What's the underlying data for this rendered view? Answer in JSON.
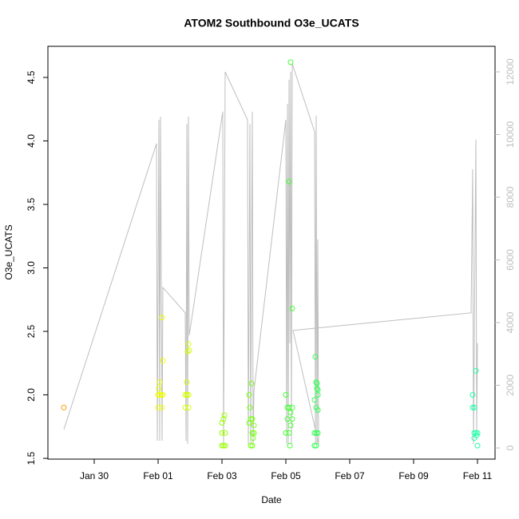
{
  "chart_data": {
    "type": "scatter",
    "title": "ATOM2 Southbound O3e_UCATS",
    "x_label": "Date",
    "y_label": "O3e_UCATS",
    "xlim": [
      -1.45,
      12.55
    ],
    "ylim": [
      1.494,
      4.745
    ],
    "y2lim": [
      -357,
      12815
    ],
    "xticks": [
      {
        "value": 0,
        "label": "Jan 30"
      },
      {
        "value": 2,
        "label": "Feb 01"
      },
      {
        "value": 4,
        "label": "Feb 03"
      },
      {
        "value": 6,
        "label": "Feb 05"
      },
      {
        "value": 8,
        "label": "Feb 07"
      },
      {
        "value": 10,
        "label": "Feb 09"
      },
      {
        "value": 12,
        "label": "Feb 11"
      }
    ],
    "yticks": [
      1.5,
      {
        "value": 2,
        "label": "2.0"
      },
      2.5,
      {
        "value": 3,
        "label": "3.0"
      },
      3.5,
      {
        "value": 4,
        "label": "4.0"
      },
      4.5
    ],
    "y2ticks": [
      0,
      2000,
      4000,
      6000,
      8000,
      10000,
      12000
    ],
    "y2_color": "#bebebe",
    "series": [
      {
        "type": "line",
        "axis": "y2",
        "color": "#bebebe",
        "x": [
          -0.95,
          1.95,
          1.975,
          2.025,
          2.05,
          2.075,
          2.125,
          2.15,
          2.85,
          2.875,
          2.9,
          2.925,
          2.95,
          2.975,
          4.025,
          4.05,
          4.1,
          4.8,
          4.825,
          4.875,
          4.9,
          4.95,
          4.975,
          5.0,
          6.0,
          6.025,
          6.05,
          6.075,
          6.1,
          6.125,
          6.15,
          6.175,
          6.2,
          6.9,
          6.925,
          6.95,
          6.975,
          7.0,
          7.025,
          6.225,
          11.8,
          11.85,
          11.875,
          11.95,
          11.975,
          12.0
        ],
        "values": [
          590,
          9710,
          230,
          10470,
          230,
          10570,
          230,
          5120,
          4310,
          230,
          10340,
          130,
          10570,
          3590,
          10730,
          130,
          12000,
          10470,
          130,
          10340,
          130,
          10730,
          130,
          1810,
          10470,
          130,
          10980,
          130,
          11750,
          3340,
          12000,
          130,
          12260,
          10090,
          130,
          10600,
          130,
          6650,
          130,
          3750,
          4310,
          8890,
          130,
          9840,
          540,
          3340
        ]
      },
      {
        "color": "#ff9900",
        "x": [
          -0.95
        ],
        "values": [
          1.9
        ]
      },
      {
        "color": "#eeff00",
        "x": [
          2.0,
          2.05,
          2.1,
          2.15,
          2.0,
          2.125,
          2.05,
          2.125,
          2.15,
          2.025
        ],
        "values": [
          2.0,
          2.0,
          2.0,
          2.0,
          1.9,
          1.9,
          2.1,
          2.61,
          2.27,
          2.05
        ]
      },
      {
        "color": "#d4ff00",
        "x": [
          2.85,
          2.9,
          2.95,
          2.85,
          2.95,
          2.9,
          2.95,
          2.975,
          2.925
        ],
        "values": [
          2.0,
          2.0,
          2.0,
          1.9,
          1.9,
          2.1,
          2.4,
          2.35,
          2.34
        ]
      },
      {
        "color": "#99ff00",
        "x": [
          4.0,
          4.05,
          4.1,
          4.0,
          4.1,
          4.05,
          4.0,
          4.075
        ],
        "values": [
          1.6,
          1.6,
          1.6,
          1.7,
          1.7,
          1.81,
          1.78,
          1.84
        ]
      },
      {
        "color": "#77ff11",
        "x": [
          4.85,
          4.9,
          4.95,
          4.85,
          4.95,
          5.0,
          4.9,
          4.95,
          4.925,
          5.0,
          4.875,
          4.975
        ],
        "values": [
          2.0,
          1.81,
          1.81,
          1.78,
          1.7,
          1.7,
          1.6,
          1.6,
          2.09,
          1.76,
          1.9,
          1.66
        ]
      },
      {
        "color": "#44ff33",
        "x": [
          6.0,
          6.05,
          6.1,
          6.15,
          6.2,
          6.0,
          6.1,
          6.2,
          6.125,
          6.1,
          6.15,
          6.2,
          6.05,
          6.15
        ],
        "values": [
          2.0,
          1.9,
          1.9,
          1.86,
          1.81,
          1.7,
          1.7,
          1.9,
          1.6,
          3.68,
          4.62,
          2.68,
          1.81,
          1.76
        ]
      },
      {
        "color": "#33ff55",
        "x": [
          6.925,
          6.95,
          6.975,
          7.0,
          6.9,
          6.95,
          7.0,
          6.9,
          6.95,
          7.0,
          6.9,
          6.95,
          6.975,
          7.0
        ],
        "values": [
          2.3,
          2.1,
          2.05,
          2.0,
          1.96,
          1.9,
          1.88,
          1.7,
          1.7,
          1.7,
          1.6,
          1.6,
          2.09,
          2.04
        ]
      },
      {
        "color": "#22ffaa",
        "x": [
          11.85,
          11.85,
          11.9,
          11.95,
          11.9,
          11.95,
          12.0,
          12.0,
          11.9,
          11.975
        ],
        "values": [
          2.0,
          1.9,
          1.9,
          2.19,
          1.7,
          1.7,
          1.7,
          1.6,
          1.66,
          1.68
        ]
      }
    ]
  }
}
